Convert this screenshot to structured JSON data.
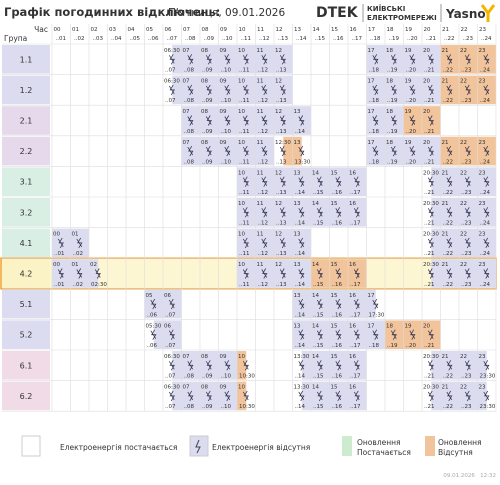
{
  "header": {
    "title": "Графік погодинних відключень:",
    "date": "П'ятниця, 09.01.2026",
    "logo_dtek": "DTEK",
    "logo_kem_1": "КИЇВСЬКІ",
    "logo_kem_2": "ЕЛЕКТРОМЕРЕЖІ",
    "logo_yasno": "Yasno"
  },
  "table": {
    "time_label": "Час",
    "group_label": "Група",
    "half_mark": ":30",
    "hours": [
      {
        "from": "00",
        "to": "..01"
      },
      {
        "from": "01",
        "to": "..02"
      },
      {
        "from": "02",
        "to": "..03"
      },
      {
        "from": "03",
        "to": "..04"
      },
      {
        "from": "04",
        "to": "..05"
      },
      {
        "from": "05",
        "to": "..06"
      },
      {
        "from": "06",
        "to": "..07"
      },
      {
        "from": "07",
        "to": "..08"
      },
      {
        "from": "08",
        "to": "..09"
      },
      {
        "from": "09",
        "to": "..10"
      },
      {
        "from": "10",
        "to": "..11"
      },
      {
        "from": "11",
        "to": "..12"
      },
      {
        "from": "12",
        "to": "..13"
      },
      {
        "from": "13",
        "to": "..14"
      },
      {
        "from": "14",
        "to": "..15"
      },
      {
        "from": "15",
        "to": "..16"
      },
      {
        "from": "16",
        "to": "..17"
      },
      {
        "from": "17",
        "to": "..18"
      },
      {
        "from": "18",
        "to": "..19"
      },
      {
        "from": "19",
        "to": "..20"
      },
      {
        "from": "20",
        "to": "..21"
      },
      {
        "from": "21",
        "to": "..22"
      },
      {
        "from": "22",
        "to": "..23"
      },
      {
        "from": "23",
        "to": "..24"
      }
    ],
    "rows": [
      {
        "group": "1.1",
        "states": [
          "",
          "",
          "",
          "",
          "",
          "",
          "x2",
          "x",
          "x",
          "x",
          "x",
          "x",
          "x",
          "",
          "",
          "",
          "",
          "x",
          "x",
          "x",
          "x",
          "o",
          "o",
          "o"
        ]
      },
      {
        "group": "1.2",
        "states": [
          "",
          "",
          "",
          "",
          "",
          "",
          "x2",
          "x",
          "x",
          "x",
          "x",
          "x",
          "x",
          "",
          "",
          "",
          "",
          "x",
          "x",
          "x",
          "x",
          "o",
          "o",
          "o"
        ]
      },
      {
        "group": "2.1",
        "states": [
          "",
          "",
          "",
          "",
          "",
          "",
          "",
          "x",
          "x",
          "x",
          "x",
          "x",
          "x",
          "x",
          "",
          "",
          "",
          "x",
          "x",
          "o",
          "o",
          "",
          "",
          ""
        ]
      },
      {
        "group": "2.2",
        "states": [
          "",
          "",
          "",
          "",
          "",
          "",
          "",
          "x",
          "x",
          "x",
          "x",
          "x",
          "o2",
          "o1",
          "",
          "",
          "",
          "x",
          "x",
          "x",
          "x",
          "o",
          "o",
          "o"
        ]
      },
      {
        "group": "3.1",
        "states": [
          "",
          "",
          "",
          "",
          "",
          "",
          "",
          "",
          "",
          "",
          "x",
          "x",
          "x",
          "x",
          "x",
          "x",
          "x",
          "",
          "",
          "",
          "x2",
          "x",
          "x",
          "x"
        ]
      },
      {
        "group": "3.2",
        "states": [
          "",
          "",
          "",
          "",
          "",
          "",
          "",
          "",
          "",
          "",
          "x",
          "x",
          "x",
          "x",
          "x",
          "x",
          "x",
          "",
          "",
          "",
          "x2",
          "x",
          "x",
          "x"
        ]
      },
      {
        "group": "4.1",
        "states": [
          "x",
          "x",
          "",
          "",
          "",
          "",
          "",
          "",
          "",
          "",
          "x",
          "x",
          "x",
          "x",
          "",
          "",
          "",
          "",
          "",
          "",
          "x2",
          "x",
          "x",
          "x"
        ]
      },
      {
        "group": "4.2",
        "states": [
          "x",
          "x",
          "x1",
          "",
          "",
          "",
          "",
          "",
          "",
          "",
          "x",
          "x",
          "x",
          "x",
          "o",
          "o",
          "o",
          "",
          "",
          "",
          "x2",
          "x",
          "x",
          "x"
        ]
      },
      {
        "group": "5.1",
        "states": [
          "",
          "",
          "",
          "",
          "",
          "x",
          "x",
          "",
          "",
          "",
          "",
          "",
          "",
          "x",
          "x",
          "x",
          "x",
          "x1",
          "",
          "",
          "",
          "",
          "",
          ""
        ]
      },
      {
        "group": "5.2",
        "states": [
          "",
          "",
          "",
          "",
          "",
          "x2",
          "x",
          "",
          "",
          "",
          "",
          "",
          "",
          "x",
          "x",
          "x",
          "x",
          "x",
          "o",
          "o",
          "o",
          "",
          "",
          ""
        ]
      },
      {
        "group": "6.1",
        "states": [
          "",
          "",
          "",
          "",
          "",
          "",
          "x2",
          "x",
          "x",
          "x",
          "o1",
          "",
          "",
          "x2",
          "x",
          "x",
          "x",
          "",
          "",
          "",
          "x2",
          "x",
          "x",
          "x1"
        ]
      },
      {
        "group": "6.2",
        "states": [
          "",
          "",
          "",
          "",
          "",
          "",
          "x2",
          "x",
          "x",
          "x",
          "o1",
          "",
          "",
          "x2",
          "x",
          "x",
          "x",
          "",
          "",
          "",
          "x2",
          "x",
          "x",
          "x1"
        ]
      }
    ]
  },
  "legend": {
    "on": "Електроенергія постачається",
    "off": "Електроенергія відсутня",
    "update_on_1": "Оновлення",
    "update_on_2": "Постачається",
    "update_off_1": "Оновлення",
    "update_off_2": "Відсутня"
  },
  "footer": {
    "timestamp": "09.01.2026   12:32"
  }
}
